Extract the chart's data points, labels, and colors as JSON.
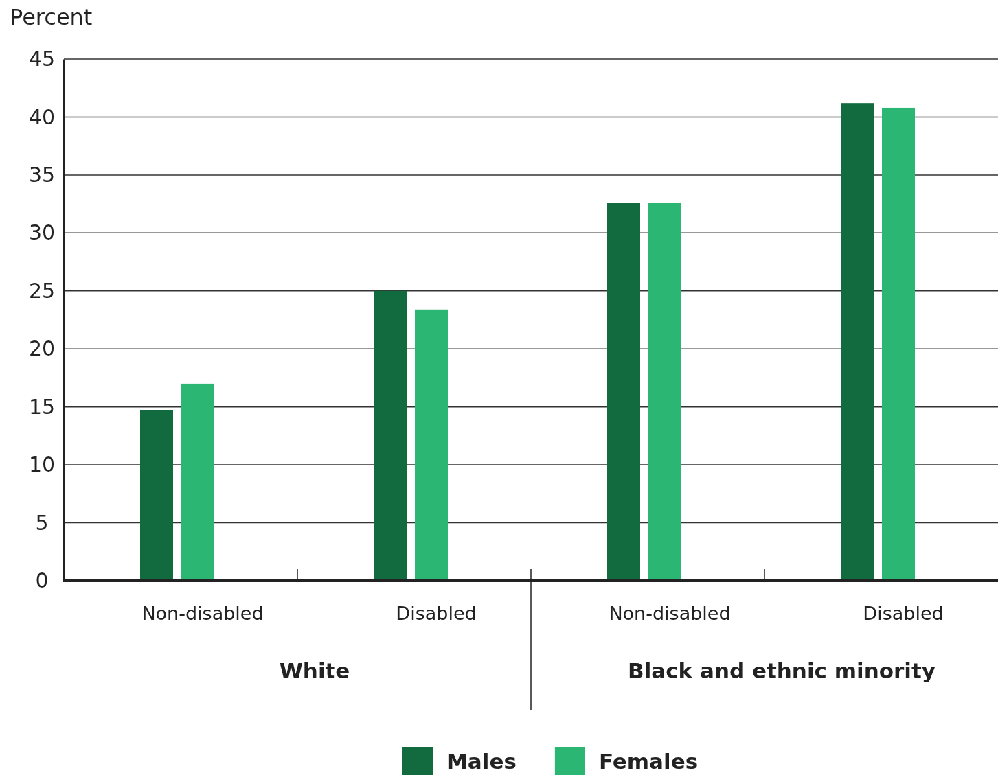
{
  "chart_data": {
    "type": "bar",
    "ylabel": "Percent",
    "categories": [
      "Non-disabled",
      "Disabled",
      "Non-disabled",
      "Disabled"
    ],
    "series": [
      {
        "name": "Males",
        "color": "#126b3e",
        "values": [
          14.7,
          25.0,
          32.6,
          41.2
        ]
      },
      {
        "name": "Females",
        "color": "#2bb673",
        "values": [
          17.0,
          23.4,
          32.6,
          40.8
        ]
      }
    ],
    "annotations": [
      "White",
      "Black and ethnic minority"
    ],
    "ylim": [
      0,
      45
    ],
    "yticks": [
      0,
      5,
      10,
      15,
      20,
      25,
      30,
      35,
      40,
      45
    ],
    "grid": "y",
    "legend": "bottom"
  }
}
